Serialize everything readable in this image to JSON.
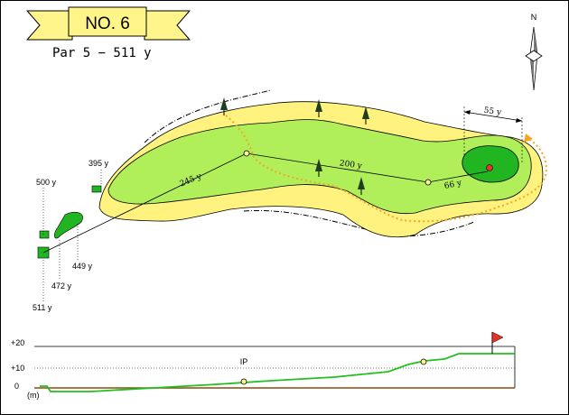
{
  "hole": {
    "title": "NO. 6",
    "par_line": "Par 5  −  511 y"
  },
  "compass": {
    "north_label": "N"
  },
  "tee_markers": [
    {
      "label": "500 y"
    },
    {
      "label": "511 y"
    },
    {
      "label": "472 y"
    },
    {
      "label": "449 y"
    },
    {
      "label": "395 y"
    }
  ],
  "shot_distances": {
    "first": "245 y",
    "second": "200 y",
    "third": "66 y",
    "green_depth": "55 y"
  },
  "elevation": {
    "unit": "(m)",
    "ticks": [
      "+20",
      "+10",
      "0"
    ],
    "ip_label": "IP"
  },
  "colors": {
    "fairway": "#b0ee5a",
    "rough": "#fff27e",
    "green": "#22b522",
    "water_path": "#f5a623",
    "profile": "#22c01e",
    "flag": "#e53326",
    "banner": "#fff58a"
  },
  "icons": [
    "tree-icon",
    "compass-icon",
    "flag-icon"
  ]
}
